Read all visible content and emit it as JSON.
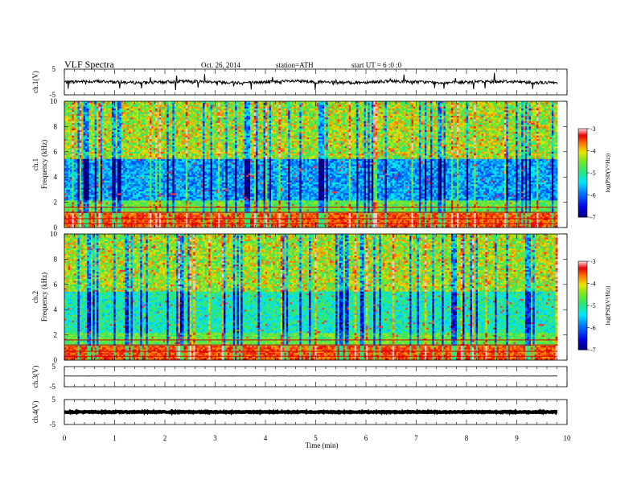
{
  "header": {
    "title": "VLF  Spectra",
    "date": "Oct. 26, 2014",
    "station": "station=ATH",
    "start": "start  UT  =   6  :0  :0"
  },
  "chart_data": [
    {
      "type": "line",
      "ylabel": "ch.1(V)",
      "yticks": [
        "5",
        "-5"
      ],
      "ylim": [
        -5,
        5
      ],
      "xlim": [
        0,
        10
      ],
      "baseline": 0,
      "noise": 0.6,
      "spikes": true
    },
    {
      "type": "heatmap",
      "ylabel": "ch.1\nFrequency (kHz)",
      "ylabel_line1": "ch.1",
      "ylabel_line2": "Frequency (kHz)",
      "yticks": [
        "0",
        "2",
        "4",
        "6",
        "8",
        "10"
      ],
      "ylim": [
        0,
        10
      ],
      "xlim": [
        0,
        9.8
      ],
      "colorbar": {
        "label": "log(PSD(V²/Hz))",
        "ticks": [
          "-3",
          "-4",
          "-5",
          "-6",
          "-7"
        ],
        "range": [
          -7,
          -3
        ]
      }
    },
    {
      "type": "heatmap",
      "ylabel": "ch.2\nFrequency (kHz)",
      "ylabel_line1": "ch.2",
      "ylabel_line2": "Frequency (kHz)",
      "yticks": [
        "0",
        "2",
        "4",
        "6",
        "8",
        "10"
      ],
      "ylim": [
        0,
        10
      ],
      "xlim": [
        0,
        9.8
      ],
      "colorbar": {
        "label": "log(PSD(V²/Hz))",
        "ticks": [
          "-3",
          "-4",
          "-5",
          "-6",
          "-7"
        ],
        "range": [
          -7,
          -3
        ]
      }
    },
    {
      "type": "line",
      "ylabel": "ch.3(V)",
      "yticks": [
        "5",
        "-5"
      ],
      "ylim": [
        -5,
        5
      ],
      "xlim": [
        0,
        10
      ],
      "baseline": 0.3,
      "noise": 0.05
    },
    {
      "type": "line",
      "ylabel": "ch.4(V)",
      "yticks": [
        "5",
        "-5"
      ],
      "ylim": [
        -5,
        5
      ],
      "xlim": [
        0,
        10
      ],
      "baseline": 0,
      "noise": 0.2,
      "thick": true
    }
  ],
  "xaxis": {
    "label": "Time  (min)",
    "ticks": [
      "0",
      "1",
      "2",
      "3",
      "4",
      "5",
      "6",
      "7",
      "8",
      "9",
      "10"
    ],
    "range": [
      0,
      10
    ]
  }
}
